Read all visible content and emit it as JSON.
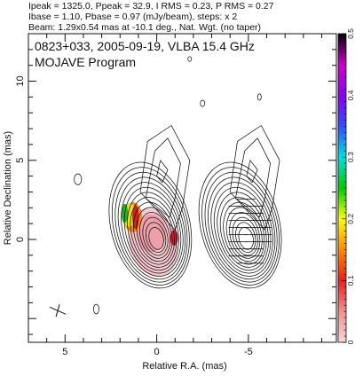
{
  "header": {
    "line1": "Ipeak = 1325.0, Ppeak = 32.9, I RMS = 0.23, P RMS = 0.27",
    "line2": "Ibase = 1.10, Pbase = 0.97 (mJy/beam), steps: x 2",
    "line3": "Beam: 1.29x0.54 mas at -10.1 deg., Nat. Wgt. (no taper)"
  },
  "chart_data": {
    "type": "heatmap",
    "title": "0823+033, 2005-09-19, VLBA 15.4 GHz",
    "subtitle": "MOJAVE Program",
    "xlabel": "Relative R.A. (mas)",
    "ylabel": "Relative Declination (mas)",
    "xlim": [
      7.0,
      -9.8
    ],
    "ylim": [
      -6.5,
      13.0
    ],
    "xticks": [
      5,
      0,
      -5
    ],
    "xtick_labels": [
      "5",
      "0",
      "-5"
    ],
    "yticks": [
      0,
      5,
      10
    ],
    "ytick_labels": [
      "0",
      "5",
      "10"
    ],
    "grid": false,
    "colorbar": {
      "min": 0,
      "max": 0.5,
      "ticks": [
        0,
        0.1,
        0.2,
        0.3,
        0.4,
        0.5
      ],
      "tick_labels": [
        "0",
        "0.1",
        "0.2",
        "0.3",
        "0.4",
        "0.5"
      ],
      "colors": [
        "#f8d8d8",
        "#f09090",
        "#e82020",
        "#ff8800",
        "#ffff00",
        "#00cc00",
        "#00e0e0",
        "#3050ff",
        "#8800ee",
        "#cc00cc",
        "#000000"
      ]
    },
    "left_panel_center": [
      0.0,
      0.0
    ],
    "right_panel_center": [
      -4.9,
      0.0
    ],
    "contour_levels_count": 14,
    "polarization_peak_position": [
      1.3,
      1.4
    ]
  }
}
